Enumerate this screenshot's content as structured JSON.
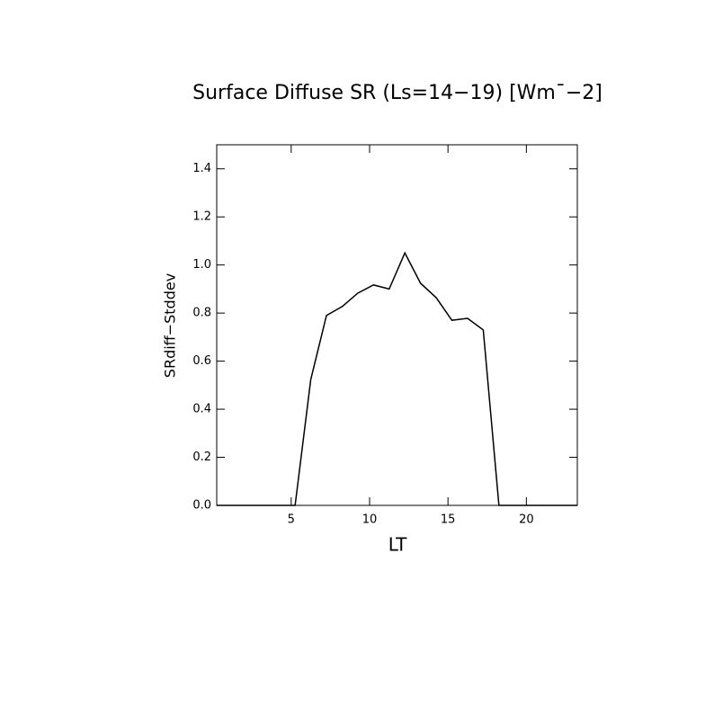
{
  "chart_data": {
    "type": "line",
    "title": "Surface Diffuse SR (Ls=14−19) [Wm¯−2]",
    "xlabel": "LT",
    "ylabel": "SRdiff−Stddev",
    "x": [
      0.25,
      1.25,
      2.25,
      3.25,
      4.25,
      5.25,
      6.25,
      7.25,
      8.25,
      9.25,
      10.25,
      11.25,
      12.25,
      13.25,
      14.25,
      15.25,
      16.25,
      17.25,
      18.25,
      19.25,
      20.25,
      21.25,
      22.25,
      23.25
    ],
    "series": [
      {
        "color": "#000000",
        "values": [
          0,
          0,
          0,
          0,
          0,
          0,
          0.524,
          0.79,
          0.827,
          0.883,
          0.917,
          0.9,
          1.05,
          0.924,
          0.864,
          0.77,
          0.778,
          0.73,
          0,
          0,
          0,
          0,
          0,
          0
        ]
      }
    ],
    "xlim": [
      0.25,
      23.25
    ],
    "xticks": [
      5,
      10,
      15,
      20
    ],
    "ylim": [
      0,
      1.5
    ],
    "yticks": [
      {
        "value": 0,
        "label": "0.0"
      },
      {
        "value": 0.2,
        "label": "0.2"
      },
      {
        "value": 0.4,
        "label": "0.4"
      },
      {
        "value": 0.6,
        "label": "0.6"
      },
      {
        "value": 0.8,
        "label": "0.8"
      },
      {
        "value": 1.0,
        "label": "1.0"
      },
      {
        "value": 1.2,
        "label": "1.2"
      },
      {
        "value": 1.4,
        "label": "1.4"
      }
    ]
  }
}
